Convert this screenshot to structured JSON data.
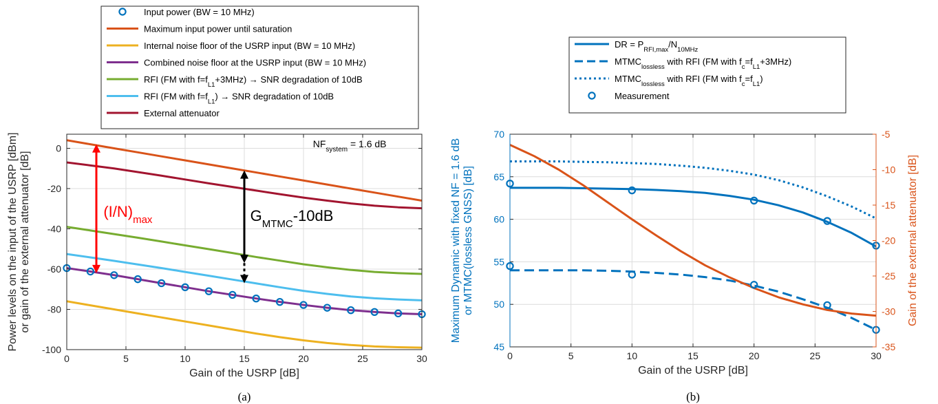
{
  "colors": {
    "blue": "#0072BD",
    "orange": "#D95319",
    "yellow": "#EDB120",
    "purple": "#7E2F8E",
    "green": "#77AC30",
    "lightblue": "#4DBEEE",
    "darkred": "#A2142F",
    "red": "#FF0000",
    "black": "#000000",
    "left_axis_b": "#0072BD",
    "right_axis_b": "#D95319"
  },
  "captions": {
    "a": "(a)",
    "b": "(b)"
  },
  "chart_data": [
    {
      "type": "line",
      "panel": "a",
      "xlabel": "Gain of the USRP [dB]",
      "ylabel_lines": [
        "Power levels on the input of the USRP [dBm]",
        "or gain of the external attenuator [dB]"
      ],
      "xlim": [
        0,
        30
      ],
      "ylim": [
        -100,
        7
      ],
      "xticks": [
        0,
        5,
        10,
        15,
        20,
        25,
        30
      ],
      "yticks": [
        -100,
        -80,
        -60,
        -40,
        -20,
        0
      ],
      "grid": true,
      "legend_position": "top",
      "legend": [
        {
          "text": "Input power (BW = 10 MHz)",
          "sub": "",
          "tail": "",
          "color_key": "blue",
          "style": "marker"
        },
        {
          "text": "Maximum input power until saturation",
          "sub": "",
          "tail": "",
          "color_key": "orange",
          "style": "solid"
        },
        {
          "text": "Internal noise floor of the USRP input (BW = 10 MHz)",
          "sub": "",
          "tail": "",
          "color_key": "yellow",
          "style": "solid"
        },
        {
          "text": "Combined noise floor at the USRP input (BW = 10 MHz)",
          "sub": "",
          "tail": "",
          "color_key": "purple",
          "style": "solid"
        },
        {
          "text": "RFI (FM with f=f",
          "sub": "L1",
          "tail": "+3MHz) → SNR degradation of 10dB",
          "color_key": "green",
          "style": "solid"
        },
        {
          "text": "RFI (FM with f=f",
          "sub": "L1",
          "tail": ") → SNR degradation of 10dB",
          "color_key": "lightblue",
          "style": "solid"
        },
        {
          "text": "External attenuator",
          "sub": "",
          "tail": "",
          "color_key": "darkred",
          "style": "solid"
        }
      ],
      "series": [
        {
          "name": "Maximum input power until saturation",
          "color_key": "orange",
          "style": "solid",
          "x": [
            0,
            2,
            4,
            6,
            8,
            10,
            12,
            14,
            16,
            18,
            20,
            22,
            24,
            26,
            28,
            30
          ],
          "y": [
            4,
            2,
            0,
            -2,
            -4,
            -6,
            -8,
            -10,
            -12,
            -14,
            -16,
            -18,
            -20,
            -22,
            -24,
            -26
          ]
        },
        {
          "name": "External attenuator",
          "color_key": "darkred",
          "style": "solid",
          "x": [
            0,
            2,
            4,
            6,
            8,
            10,
            12,
            14,
            16,
            18,
            20,
            22,
            24,
            26,
            28,
            30
          ],
          "y": [
            -7,
            -8.5,
            -10,
            -11.8,
            -13.6,
            -15.5,
            -17.4,
            -19.2,
            -21,
            -22.8,
            -24.5,
            -26,
            -27.4,
            -28.5,
            -29.3,
            -29.8
          ]
        },
        {
          "name": "RFI (FM with f=fL1+3MHz) → SNR degradation of 10dB",
          "color_key": "green",
          "style": "solid",
          "x": [
            0,
            2,
            4,
            6,
            8,
            10,
            12,
            14,
            16,
            18,
            20,
            22,
            24,
            26,
            28,
            30
          ],
          "y": [
            -39,
            -40.8,
            -42.6,
            -44.4,
            -46.3,
            -48.2,
            -50.1,
            -52,
            -54,
            -55.8,
            -57.6,
            -59.1,
            -60.4,
            -61.4,
            -62,
            -62.4
          ]
        },
        {
          "name": "RFI (FM with f=fL1) → SNR degradation of 10dB",
          "color_key": "lightblue",
          "style": "solid",
          "x": [
            0,
            2,
            4,
            6,
            8,
            10,
            12,
            14,
            16,
            18,
            20,
            22,
            24,
            26,
            28,
            30
          ],
          "y": [
            -52.5,
            -54.2,
            -55.9,
            -57.7,
            -59.5,
            -61.4,
            -63.3,
            -65.2,
            -67.1,
            -69,
            -70.8,
            -72.3,
            -73.6,
            -74.5,
            -75.1,
            -75.5
          ]
        },
        {
          "name": "Combined noise floor at the USRP input (BW = 10 MHz)",
          "color_key": "purple",
          "style": "solid",
          "x": [
            0,
            2,
            4,
            6,
            8,
            10,
            12,
            14,
            16,
            18,
            20,
            22,
            24,
            26,
            28,
            30
          ],
          "y": [
            -59.5,
            -61.2,
            -63,
            -65,
            -67,
            -69,
            -71,
            -72.8,
            -74.6,
            -76.3,
            -77.8,
            -79.2,
            -80.4,
            -81.3,
            -82,
            -82.4
          ]
        },
        {
          "name": "Internal noise floor of the USRP input (BW = 10 MHz)",
          "color_key": "yellow",
          "style": "solid",
          "x": [
            0,
            2,
            4,
            6,
            8,
            10,
            12,
            14,
            16,
            18,
            20,
            22,
            24,
            26,
            28,
            30
          ],
          "y": [
            -76,
            -78,
            -80,
            -82,
            -84,
            -86,
            -88,
            -90,
            -92,
            -93.8,
            -95.4,
            -96.7,
            -97.7,
            -98.4,
            -98.8,
            -99
          ]
        },
        {
          "name": "Input power (BW = 10 MHz)",
          "color_key": "blue",
          "style": "marker",
          "x": [
            0,
            2,
            4,
            6,
            8,
            10,
            12,
            14,
            16,
            18,
            20,
            22,
            24,
            26,
            28,
            30
          ],
          "y": [
            -59.5,
            -61.2,
            -63,
            -65,
            -67,
            -69,
            -71,
            -72.8,
            -74.6,
            -76.3,
            -77.8,
            -79.2,
            -80.4,
            -81.3,
            -82,
            -82.4
          ]
        }
      ],
      "annotations": [
        {
          "text": "NF",
          "sub": "system",
          "tail": " = 1.6 dB",
          "x": 20.8,
          "y": 0.5
        },
        {
          "text": "(I/N)",
          "sub": "max",
          "tail": "",
          "x": 3.1,
          "y": -34,
          "color_key": "red"
        },
        {
          "text": "G",
          "sub": "MTMC",
          "tail": "-10dB",
          "x": 15.5,
          "y": -36,
          "color_key": "black"
        }
      ],
      "arrows": [
        {
          "name": "i-n-max-arrow",
          "x": 2.5,
          "y_from": 2,
          "y_to": -62,
          "color_key": "red",
          "style": "solid"
        },
        {
          "name": "g-mtmc-arrow",
          "x": 15,
          "y_from": -11,
          "y_to": -57,
          "color_key": "black",
          "style": "solid"
        },
        {
          "name": "g-mtmc-dotted-arrow",
          "x": 15,
          "y_from": -57,
          "y_to": -67,
          "color_key": "black",
          "style": "dotted"
        }
      ]
    },
    {
      "type": "line",
      "panel": "b",
      "xlabel": "Gain of the USRP [dB]",
      "ylabel_lines": [
        "Maximum Dynamic with fixed NF = 1.6 dB",
        "or MTMC(lossless GNSS) [dB]"
      ],
      "ylabel_right": "Gain of the external attenuator [dB]",
      "xlim": [
        0,
        30
      ],
      "ylim": [
        45,
        70
      ],
      "ylim_right": [
        -35,
        -5
      ],
      "xticks": [
        0,
        5,
        10,
        15,
        20,
        25,
        30
      ],
      "yticks": [
        45,
        50,
        55,
        60,
        65,
        70
      ],
      "yticks_right": [
        -35,
        -30,
        -25,
        -20,
        -15,
        -10,
        -5
      ],
      "grid": true,
      "legend_position": "top",
      "legend": [
        {
          "text": "DR = P",
          "sub": "RFI,max",
          "tail": "/N",
          "sub2": "10MHz",
          "color_key": "blue",
          "style": "solid"
        },
        {
          "text": "MTMC",
          "sub": "lossless",
          "tail": " with RFI (FM with f",
          "sub2": "c",
          "tail2": "=f",
          "sub3": "L1",
          "tail3": "+3MHz)",
          "color_key": "blue",
          "style": "dashed"
        },
        {
          "text": "MTMC",
          "sub": "lossless",
          "tail": " with RFI (FM with f",
          "sub2": "c",
          "tail2": "=f",
          "sub3": "L1",
          "tail3": ")",
          "color_key": "blue",
          "style": "dotted"
        },
        {
          "text": "Measurement",
          "sub": "",
          "tail": "",
          "color_key": "blue",
          "style": "marker"
        }
      ],
      "series": [
        {
          "name": "DR = PRFI,max/N10MHz",
          "axis": "left",
          "color_key": "blue",
          "style": "solid",
          "x": [
            0,
            2,
            4,
            6,
            8,
            10,
            12,
            14,
            16,
            18,
            20,
            22,
            24,
            26,
            28,
            30
          ],
          "y": [
            63.7,
            63.7,
            63.7,
            63.65,
            63.6,
            63.55,
            63.45,
            63.3,
            63.1,
            62.75,
            62.3,
            61.65,
            60.8,
            59.7,
            58.4,
            56.8
          ]
        },
        {
          "name": "MTMClossless with RFI (FM with fc=fL1+3MHz)",
          "axis": "left",
          "color_key": "blue",
          "style": "dashed",
          "x": [
            0,
            2,
            4,
            6,
            8,
            10,
            12,
            14,
            16,
            18,
            20,
            22,
            24,
            26,
            28,
            30
          ],
          "y": [
            54,
            54,
            54,
            54,
            53.95,
            53.85,
            53.7,
            53.5,
            53.2,
            52.8,
            52.2,
            51.5,
            50.6,
            49.6,
            48.4,
            47
          ]
        },
        {
          "name": "MTMClossless with RFI (FM with fc=fL1)",
          "axis": "left",
          "color_key": "blue",
          "style": "dotted",
          "x": [
            0,
            2,
            4,
            6,
            8,
            10,
            12,
            14,
            16,
            18,
            20,
            22,
            24,
            26,
            28,
            30
          ],
          "y": [
            66.8,
            66.8,
            66.8,
            66.75,
            66.7,
            66.6,
            66.5,
            66.3,
            66.05,
            65.7,
            65.25,
            64.6,
            63.75,
            62.7,
            61.5,
            60.1
          ]
        },
        {
          "name": "Gain of the external attenuator",
          "axis": "right",
          "color_key": "orange",
          "style": "solid",
          "x": [
            0,
            2,
            4,
            6,
            8,
            10,
            12,
            14,
            16,
            18,
            20,
            22,
            24,
            26,
            28,
            30
          ],
          "y": [
            -6.5,
            -8.1,
            -10,
            -12.2,
            -14.6,
            -17,
            -19.3,
            -21.5,
            -23.5,
            -25.2,
            -26.7,
            -28,
            -29,
            -29.8,
            -30.3,
            -30.6
          ]
        },
        {
          "name": "Measurement",
          "axis": "left",
          "color_key": "blue",
          "style": "marker",
          "x": [
            0,
            10,
            20,
            26,
            30,
            0,
            10,
            20,
            26,
            30
          ],
          "y": [
            64.2,
            63.4,
            62.2,
            59.8,
            56.9,
            54.5,
            53.5,
            52.3,
            49.9,
            47
          ]
        }
      ]
    }
  ]
}
